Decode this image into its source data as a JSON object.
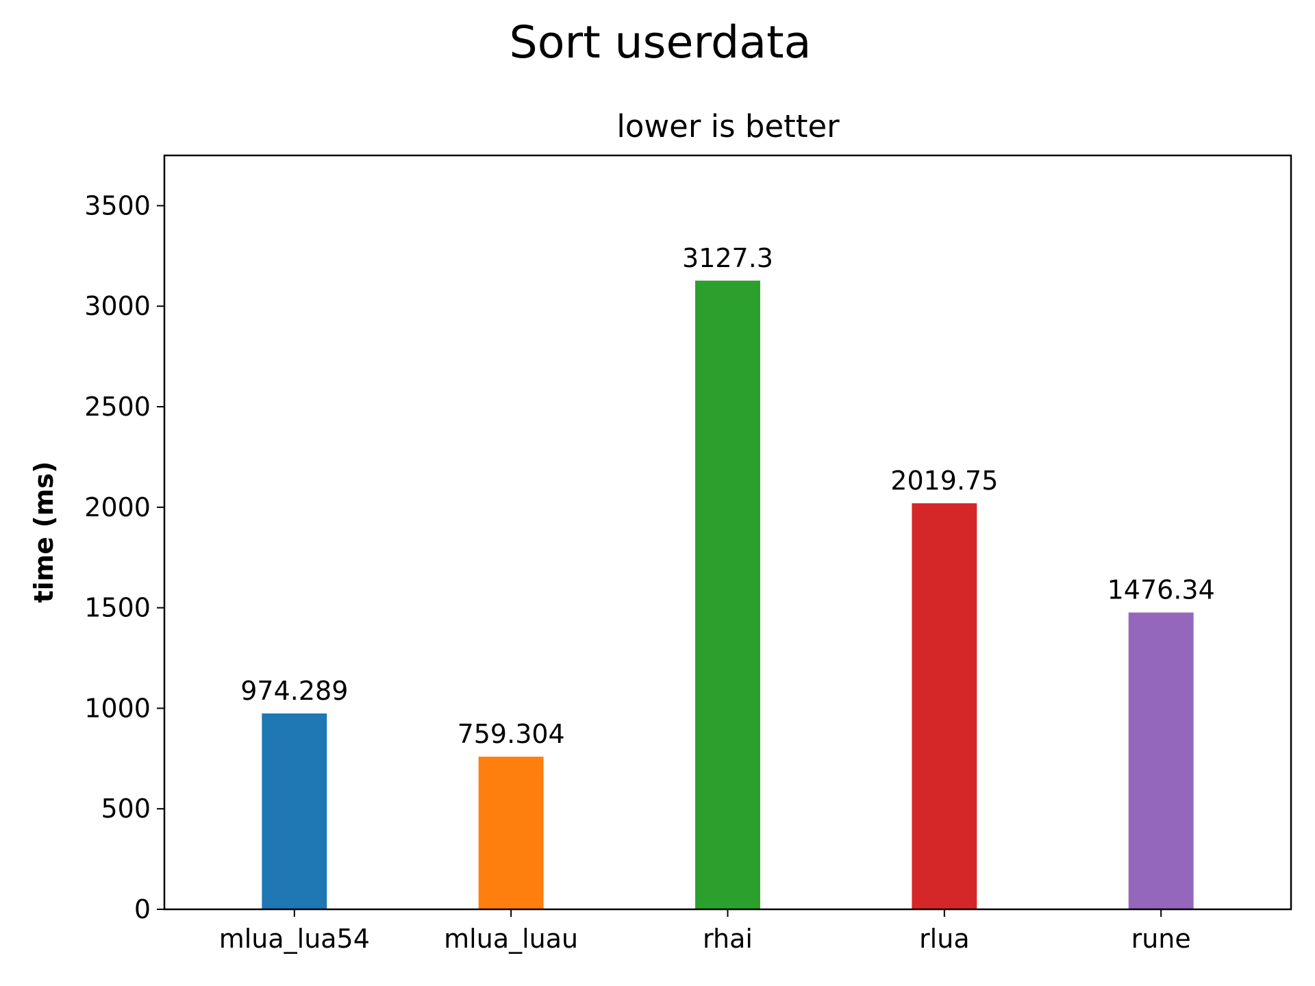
{
  "chart_data": {
    "type": "bar",
    "title": "Sort userdata",
    "subtitle": "lower is better",
    "xlabel": "",
    "ylabel": "time (ms)",
    "categories": [
      "mlua_lua54",
      "mlua_luau",
      "rhai",
      "rlua",
      "rune"
    ],
    "values": [
      974.289,
      759.304,
      3127.3,
      2019.75,
      1476.34
    ],
    "value_labels": [
      "974.289",
      "759.304",
      "3127.3",
      "2019.75",
      "1476.34"
    ],
    "colors": [
      "#1f77b4",
      "#ff7f0e",
      "#2ca02c",
      "#d62728",
      "#9467bd"
    ],
    "ylim": [
      0,
      3750
    ],
    "yticks": [
      0,
      500,
      1000,
      1500,
      2000,
      2500,
      3000,
      3500
    ],
    "ytick_labels": [
      "0",
      "500",
      "1000",
      "1500",
      "2000",
      "2500",
      "3000",
      "3500"
    ],
    "grid": false,
    "legend": "none"
  }
}
